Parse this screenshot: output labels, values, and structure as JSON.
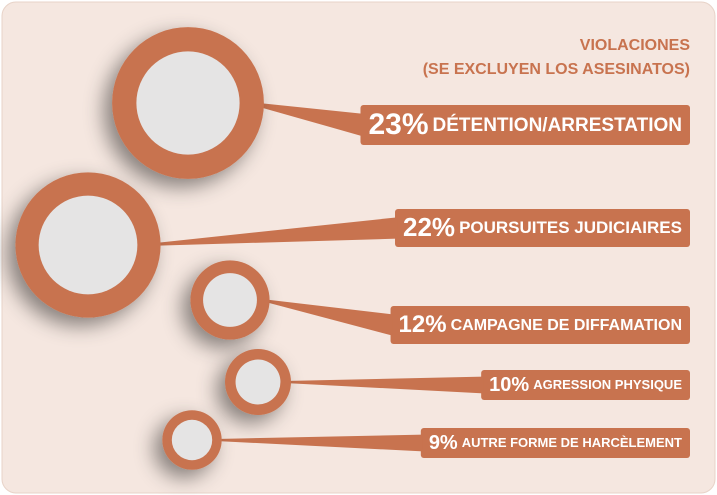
{
  "chart_data": {
    "type": "bubble",
    "title": "VIOLACIONES",
    "subtitle": "(SE EXCLUYEN LOS ASESINATOS)",
    "categories": [
      "DÉTENTION/ARRESTATION",
      "POURSUITES JUDICIAIRES",
      "CAMPAGNE DE DIFFAMATION",
      "AGRESSION PHYSIQUE",
      "AUTRE FORME DE HARCÈLEMENT"
    ],
    "values": [
      23,
      22,
      12,
      10,
      9
    ],
    "value_labels": [
      "23%",
      "22%",
      "12%",
      "10%",
      "9%"
    ],
    "color": "#c8734f"
  }
}
